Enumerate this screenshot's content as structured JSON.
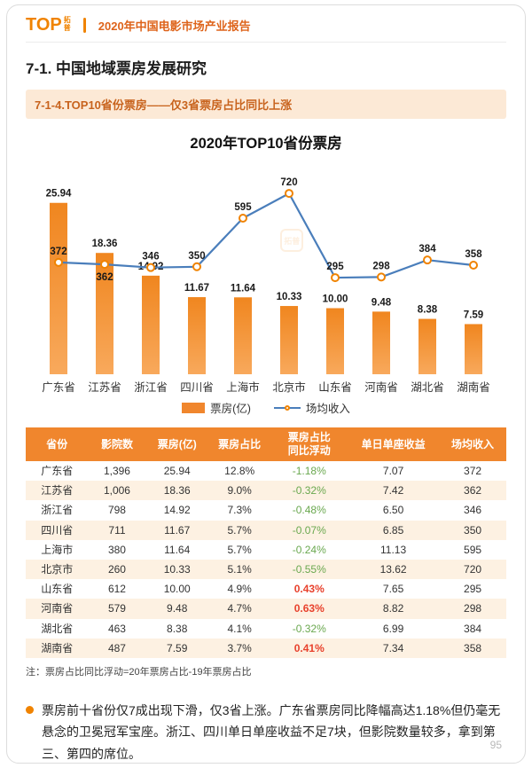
{
  "page": {
    "header": {
      "logo_text": "TOP",
      "logo_sub_1": "拓",
      "logo_sub_2": "普",
      "report_title": "2020年中国电影市场产业报告"
    },
    "section_title": "7-1. 中国地域票房发展研究",
    "subsection_title": "7-1-4.TOP10省份票房——仅3省票房占比同比上涨",
    "page_number": "95"
  },
  "chart_data": {
    "type": "bar+line",
    "title": "2020年TOP10省份票房",
    "categories": [
      "广东省",
      "江苏省",
      "浙江省",
      "四川省",
      "上海市",
      "北京市",
      "山东省",
      "河南省",
      "湖北省",
      "湖南省"
    ],
    "series": [
      {
        "name": "票房(亿)",
        "type": "bar",
        "value_labels": [
          "25.94",
          "18.36",
          "14.92",
          "11.67",
          "11.64",
          "10.33",
          "10.00",
          "9.48",
          "8.38",
          "7.59"
        ]
      },
      {
        "name": "场均收入",
        "type": "line",
        "values": [
          372,
          362,
          346,
          350,
          595,
          720,
          295,
          298,
          384,
          358
        ]
      }
    ],
    "legend": [
      "票房(亿)",
      "场均收入"
    ],
    "colors": {
      "bar_top": "#F0861F",
      "bar_bottom": "#F8A95C",
      "line": "#4A7EBB",
      "marker": "#F08300"
    },
    "line_label_below_indices": [
      1
    ],
    "grid": false,
    "legend_position": "bottom",
    "watermark_text": "拓普"
  },
  "table": {
    "headers": [
      "省份",
      "影院数",
      "票房(亿)",
      "票房占比",
      "票房占比\n同比浮动",
      "单日单座收益",
      "场均收入"
    ],
    "rows": [
      [
        "广东省",
        "1,396",
        "25.94",
        "12.8%",
        "-1.18%",
        "7.07",
        "372"
      ],
      [
        "江苏省",
        "1,006",
        "18.36",
        "9.0%",
        "-0.32%",
        "7.42",
        "362"
      ],
      [
        "浙江省",
        "798",
        "14.92",
        "7.3%",
        "-0.48%",
        "6.50",
        "346"
      ],
      [
        "四川省",
        "711",
        "11.67",
        "5.7%",
        "-0.07%",
        "6.85",
        "350"
      ],
      [
        "上海市",
        "380",
        "11.64",
        "5.7%",
        "-0.24%",
        "11.13",
        "595"
      ],
      [
        "北京市",
        "260",
        "10.33",
        "5.1%",
        "-0.55%",
        "13.62",
        "720"
      ],
      [
        "山东省",
        "612",
        "10.00",
        "4.9%",
        "0.43%",
        "7.65",
        "295"
      ],
      [
        "河南省",
        "579",
        "9.48",
        "4.7%",
        "0.63%",
        "8.82",
        "298"
      ],
      [
        "湖北省",
        "463",
        "8.38",
        "4.1%",
        "-0.32%",
        "6.99",
        "384"
      ],
      [
        "湖南省",
        "487",
        "7.59",
        "3.7%",
        "0.41%",
        "7.34",
        "358"
      ]
    ],
    "change_col_index": 4,
    "note": "注：票房占比同比浮动=20年票房占比-19年票房占比",
    "positive_color": "#E8412C",
    "negative_color": "#6AA84F",
    "header_bg": "#F0862D"
  },
  "analysis": {
    "bullet_text": "票房前十省份仅7成出现下滑，仅3省上涨。广东省票房同比降幅高达1.18%但仍毫无悬念的卫冕冠军宝座。浙江、四川单日单座收益不足7块，但影院数量较多，拿到第三、第四的席位。"
  }
}
